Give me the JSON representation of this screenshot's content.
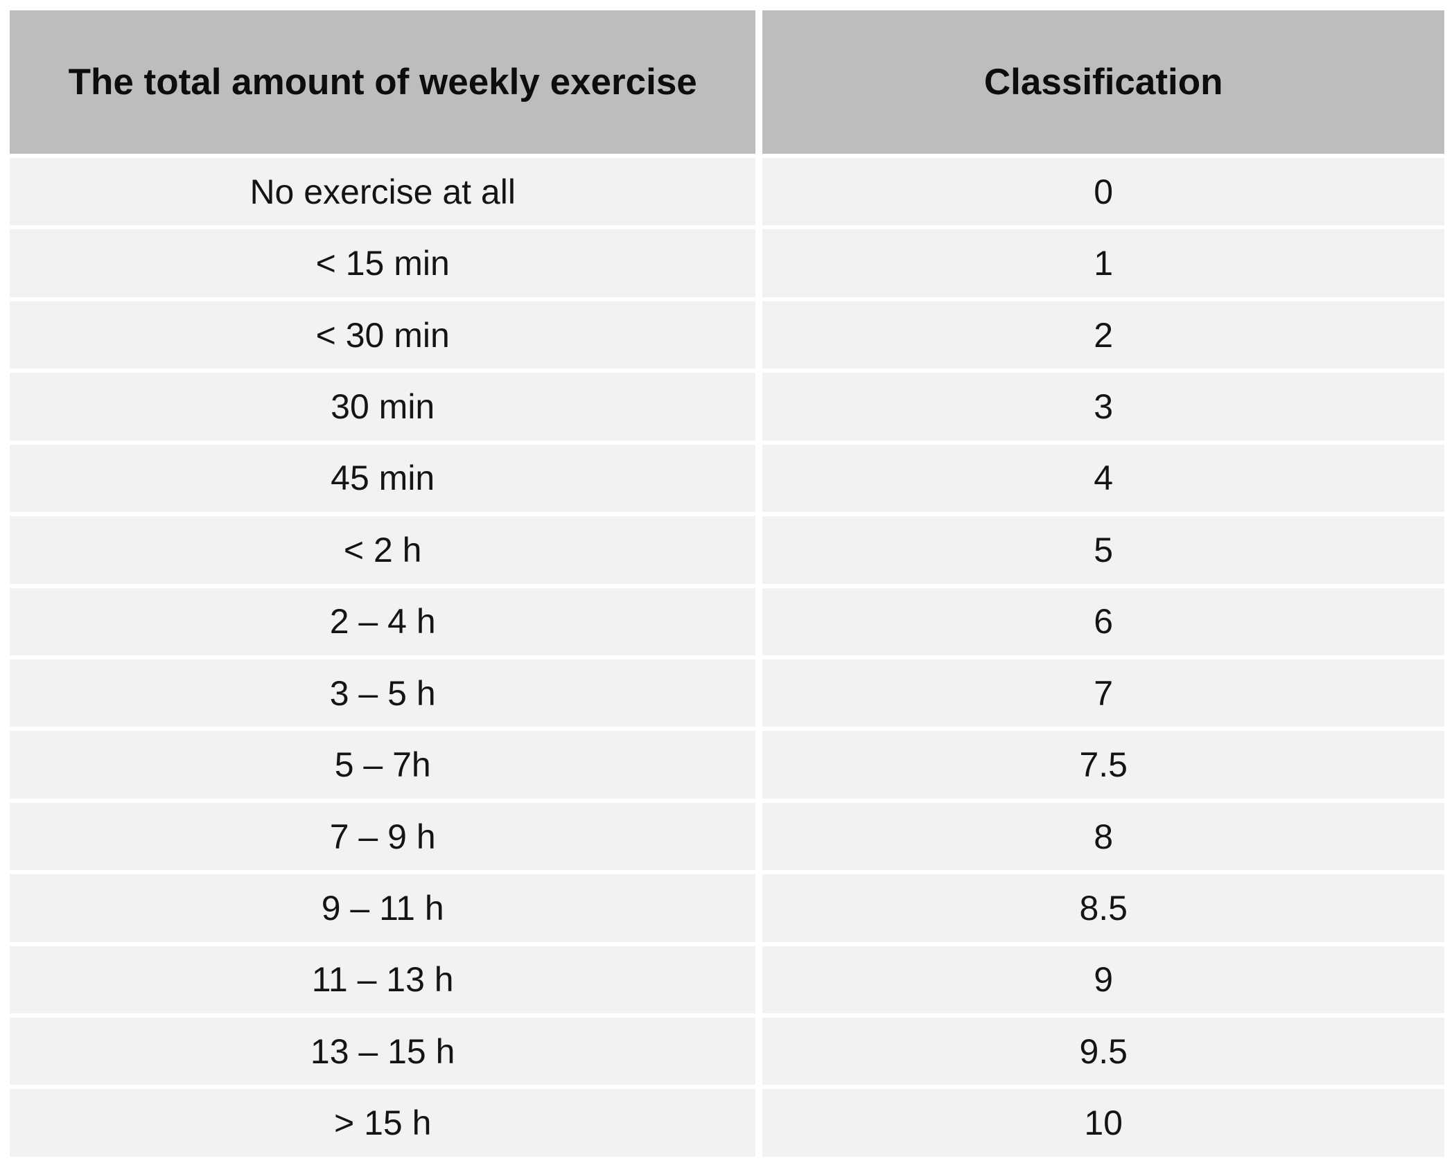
{
  "chart_data": {
    "type": "table",
    "columns": [
      "The total amount of weekly exercise",
      "Classification"
    ],
    "rows": [
      [
        "No exercise at all",
        0
      ],
      [
        "< 15 min",
        1
      ],
      [
        "< 30 min",
        2
      ],
      [
        "30 min",
        3
      ],
      [
        "45 min",
        4
      ],
      [
        "< 2 h",
        5
      ],
      [
        "2 – 4 h",
        6
      ],
      [
        "3 – 5 h",
        7
      ],
      [
        "5 – 7h",
        7.5
      ],
      [
        "7 – 9 h",
        8
      ],
      [
        "9 – 11 h",
        8.5
      ],
      [
        "11 – 13 h",
        9
      ],
      [
        "13 – 15 h",
        9.5
      ],
      [
        "> 15 h",
        10
      ]
    ],
    "layout": {
      "grid": "white separator lines",
      "header_style": "bold centered",
      "cell_alignment": "center"
    }
  },
  "colors": {
    "header_bg": "#bdbdbd",
    "row_bg": "#f2f2f2",
    "separator": "#ffffff",
    "text": "#141414"
  }
}
